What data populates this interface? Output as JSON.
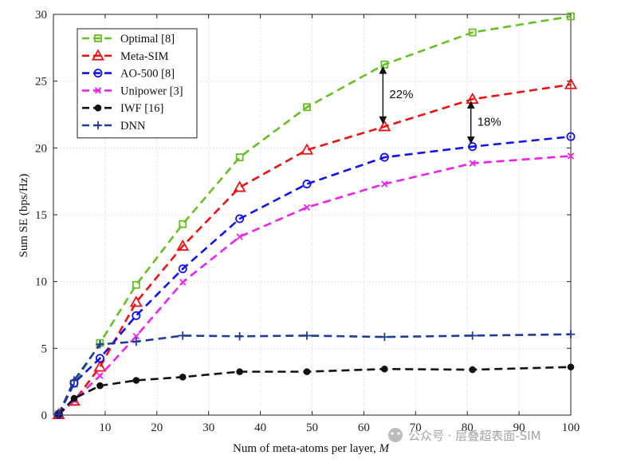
{
  "chart_data": {
    "type": "line",
    "xlabel_prefix": "Num of meta-atoms per layer, ",
    "xlabel_var": "M",
    "ylabel": "Sum SE (bps/Hz)",
    "xlim": [
      0,
      100
    ],
    "ylim": [
      0,
      30
    ],
    "xticks": [
      10,
      20,
      30,
      40,
      50,
      60,
      70,
      80,
      90,
      100
    ],
    "yticks": [
      0,
      5,
      10,
      15,
      20,
      25,
      30
    ],
    "grid": true,
    "legend_position": "top-left",
    "x": [
      1,
      4,
      9,
      16,
      25,
      36,
      49,
      64,
      81,
      100
    ],
    "series": [
      {
        "name": "Optimal [8]",
        "color": "#66c021",
        "marker": "square",
        "values": [
          0.05,
          2.35,
          5.4,
          9.75,
          14.3,
          19.3,
          23.05,
          26.25,
          28.65,
          29.85
        ]
      },
      {
        "name": "Meta-SIM",
        "color": "#ee1111",
        "marker": "triangle",
        "values": [
          0.05,
          1.05,
          3.6,
          8.45,
          12.65,
          17.05,
          19.85,
          21.6,
          23.65,
          24.75
        ]
      },
      {
        "name": "AO-500 [8]",
        "color": "#1111ee",
        "marker": "circle",
        "values": [
          0.05,
          2.4,
          4.25,
          7.45,
          10.95,
          14.7,
          17.3,
          19.3,
          20.1,
          20.85
        ]
      },
      {
        "name": "Unipower [3]",
        "color": "#ee22ee",
        "marker": "x",
        "values": [
          0.05,
          1.1,
          2.95,
          5.9,
          9.95,
          13.35,
          15.55,
          17.3,
          18.85,
          19.4
        ]
      },
      {
        "name": "IWF [16]",
        "color": "#111111",
        "marker": "dot",
        "values": [
          0.05,
          1.25,
          2.2,
          2.6,
          2.85,
          3.25,
          3.25,
          3.45,
          3.4,
          3.6
        ]
      },
      {
        "name": "DNN",
        "color": "#1f3c96",
        "marker": "plus",
        "values": [
          0.05,
          2.6,
          5.3,
          5.5,
          5.95,
          5.9,
          5.95,
          5.85,
          5.95,
          6.05
        ]
      }
    ],
    "annotations": [
      {
        "label": "22%",
        "x": 64,
        "y_from": 21.6,
        "y_to": 26.25
      },
      {
        "label": "18%",
        "x": 81,
        "y_from": 20.1,
        "y_to": 23.65
      }
    ]
  },
  "watermark": {
    "text": "公众号 · 层叠超表面-SIM"
  }
}
